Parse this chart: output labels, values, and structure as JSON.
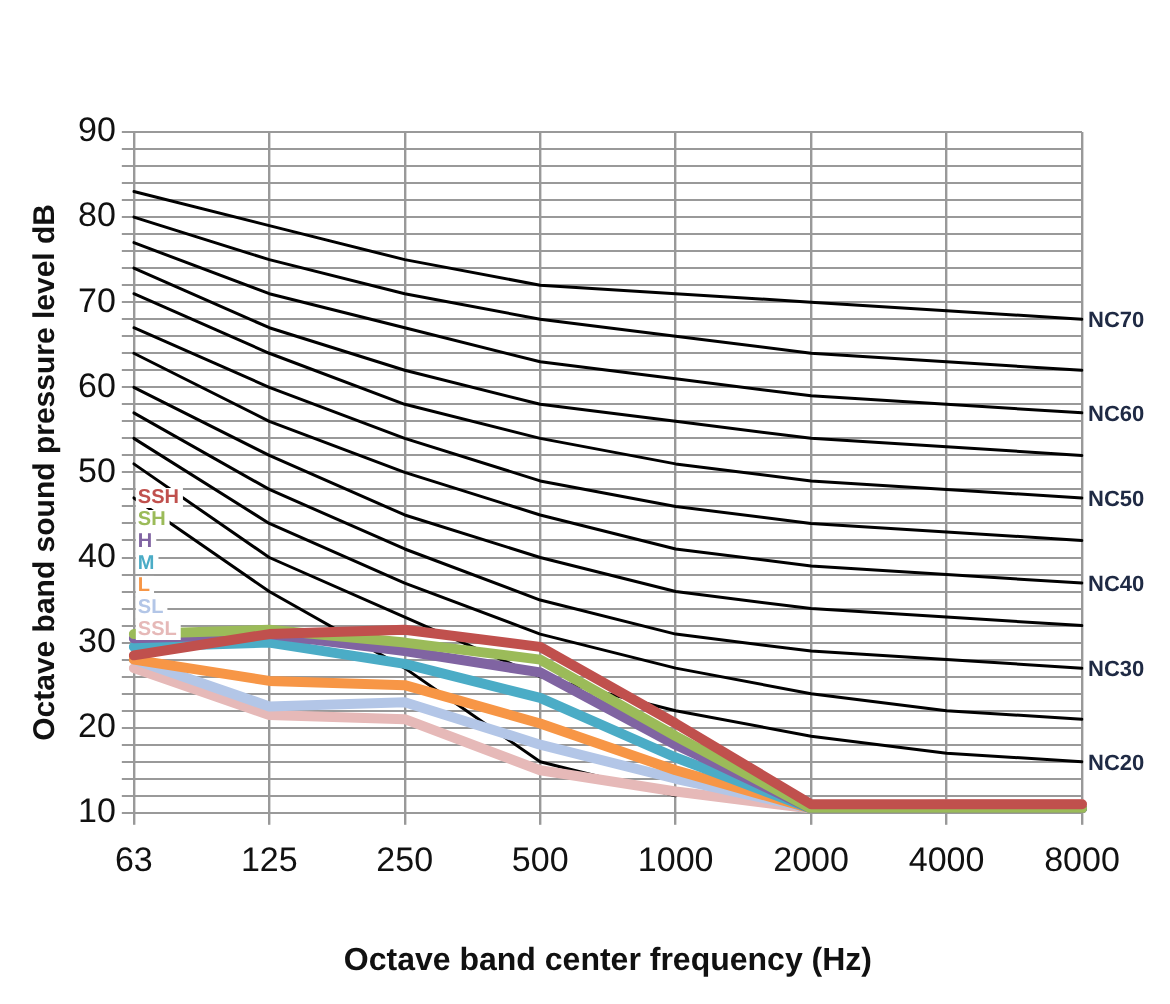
{
  "chart_data": {
    "type": "line",
    "xlabel": "Octave band center frequency (Hz)",
    "ylabel": "Octave band sound pressure level dB",
    "categories": [
      "63",
      "125",
      "250",
      "500",
      "1000",
      "2000",
      "4000",
      "8000"
    ],
    "ylim": [
      10,
      90
    ],
    "yticks": [
      10,
      {
        "value": 12,
        "label": null
      },
      {
        "value": 14,
        "label": null
      },
      {
        "value": 16,
        "label": null
      },
      {
        "value": 18,
        "label": null
      },
      20,
      {
        "value": 22,
        "label": null
      },
      {
        "value": 24,
        "label": null
      },
      {
        "value": 26,
        "label": null
      },
      {
        "value": 28,
        "label": null
      },
      30,
      {
        "value": 32,
        "label": null
      },
      {
        "value": 34,
        "label": null
      },
      {
        "value": 36,
        "label": null
      },
      {
        "value": 38,
        "label": null
      },
      40,
      {
        "value": 42,
        "label": null
      },
      {
        "value": 44,
        "label": null
      },
      {
        "value": 46,
        "label": null
      },
      {
        "value": 48,
        "label": null
      },
      50,
      {
        "value": 52,
        "label": null
      },
      {
        "value": 54,
        "label": null
      },
      {
        "value": 56,
        "label": null
      },
      {
        "value": 58,
        "label": null
      },
      60,
      {
        "value": 62,
        "label": null
      },
      {
        "value": 64,
        "label": null
      },
      {
        "value": 66,
        "label": null
      },
      {
        "value": 68,
        "label": null
      },
      70,
      {
        "value": 72,
        "label": null
      },
      {
        "value": 74,
        "label": null
      },
      {
        "value": 76,
        "label": null
      },
      {
        "value": 78,
        "label": null
      },
      80,
      {
        "value": 82,
        "label": null
      },
      {
        "value": 84,
        "label": null
      },
      {
        "value": 86,
        "label": null
      },
      {
        "value": 88,
        "label": null
      },
      90
    ],
    "grid": true,
    "legend": false,
    "marker": "none",
    "line_style": "solid",
    "series": [
      {
        "name": "NC70",
        "color": "#000000",
        "values": [
          83,
          79,
          75,
          72,
          71,
          70,
          69,
          68
        ]
      },
      {
        "color": "#000000",
        "values": [
          80,
          75,
          71,
          68,
          66,
          64,
          63,
          62
        ]
      },
      {
        "name": "NC60",
        "color": "#000000",
        "values": [
          77,
          71,
          67,
          63,
          61,
          59,
          58,
          57
        ]
      },
      {
        "color": "#000000",
        "values": [
          74,
          67,
          62,
          58,
          56,
          54,
          53,
          52
        ]
      },
      {
        "name": "NC50",
        "color": "#000000",
        "values": [
          71,
          64,
          58,
          54,
          51,
          49,
          48,
          47
        ]
      },
      {
        "color": "#000000",
        "values": [
          67,
          60,
          54,
          49,
          46,
          44,
          43,
          42
        ]
      },
      {
        "name": "NC40",
        "color": "#000000",
        "values": [
          64,
          56,
          50,
          45,
          41,
          39,
          38,
          37
        ]
      },
      {
        "color": "#000000",
        "values": [
          60,
          52,
          45,
          40,
          36,
          34,
          33,
          32
        ]
      },
      {
        "name": "NC30",
        "color": "#000000",
        "values": [
          57,
          48,
          41,
          35,
          31,
          29,
          28,
          27
        ]
      },
      {
        "color": "#000000",
        "values": [
          54,
          44,
          37,
          31,
          27,
          24,
          22,
          21
        ]
      },
      {
        "name": "NC20",
        "color": "#000000",
        "values": [
          51,
          40,
          33,
          26,
          22,
          19,
          17,
          16
        ]
      },
      {
        "color": "#000000",
        "values": [
          47,
          36,
          27,
          16,
          12,
          null,
          null,
          null
        ]
      },
      {
        "name": "SSH",
        "color": "#c0504d",
        "values": [
          28.5,
          31,
          31.5,
          29.5,
          20.5,
          11,
          11,
          11
        ]
      },
      {
        "name": "SH",
        "color": "#9bbb59",
        "values": [
          31,
          31.5,
          30,
          28,
          19,
          10.5,
          10.5,
          10.5
        ]
      },
      {
        "name": "H",
        "color": "#8064a2",
        "values": [
          30.5,
          31,
          29,
          26.5,
          18,
          10.5,
          10.5,
          10.5
        ]
      },
      {
        "name": "M",
        "color": "#4bacc6",
        "values": [
          29.5,
          30,
          27.5,
          23.5,
          16.5,
          10.5,
          10.5,
          10.5
        ]
      },
      {
        "name": "L",
        "color": "#f79646",
        "values": [
          28,
          25.5,
          25,
          20.5,
          15,
          10.5,
          10.5,
          10.5
        ]
      },
      {
        "name": "SL",
        "color": "#b3c6e7",
        "values": [
          28,
          22.5,
          23,
          18,
          14,
          10.5,
          10.5,
          10.5
        ]
      },
      {
        "name": "SSL",
        "color": "#e6b9b8",
        "values": [
          27,
          21.5,
          21,
          15,
          12.5,
          10.5,
          11,
          11
        ]
      }
    ]
  }
}
